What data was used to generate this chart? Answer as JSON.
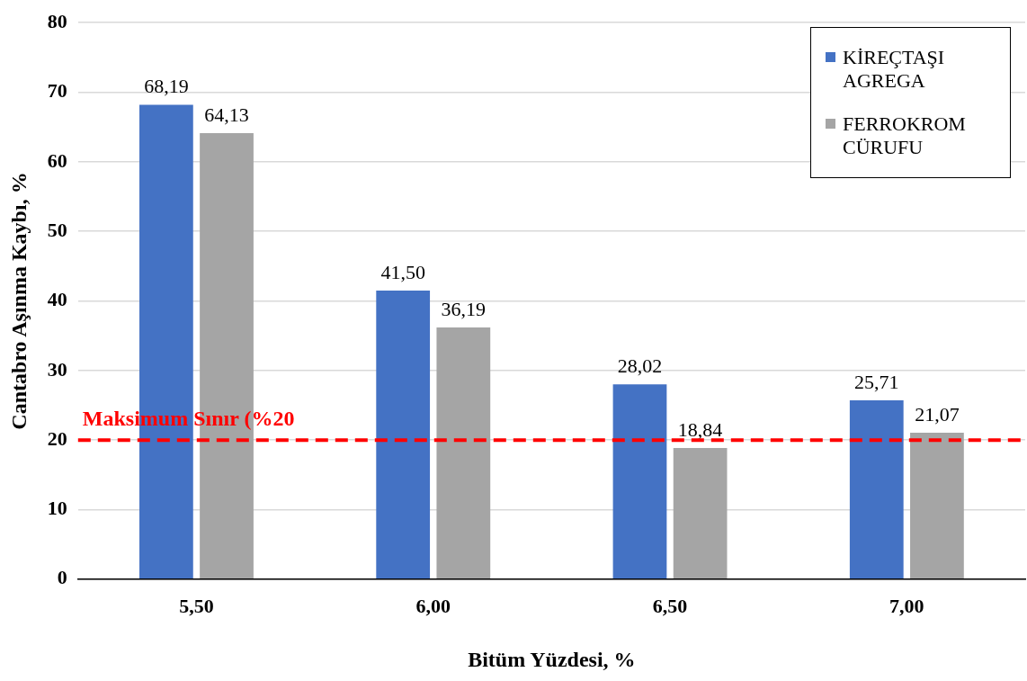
{
  "chart_data": {
    "type": "bar",
    "xlabel": "Bitüm Yüzdesi, %",
    "ylabel": "Cantabro Aşınma Kaybı, %",
    "categories": [
      "5,50",
      "6,00",
      "6,50",
      "7,00"
    ],
    "series": [
      {
        "name": "KİREÇTAŞI AGREGA",
        "color": "#4472c4",
        "values": [
          68.19,
          41.5,
          28.02,
          25.71
        ],
        "value_labels": [
          "68,19",
          "41,50",
          "28,02",
          "25,71"
        ]
      },
      {
        "name": "FERROKROM CÜRUFU",
        "color": "#a5a5a5",
        "values": [
          64.13,
          36.19,
          18.84,
          21.07
        ],
        "value_labels": [
          "64,13",
          "36,19",
          "18,84",
          "21,07"
        ]
      }
    ],
    "ylim": [
      0,
      80
    ],
    "yticks": [
      0,
      10,
      20,
      30,
      40,
      50,
      60,
      70,
      80
    ],
    "grid": "y",
    "legend": "top right",
    "ref_lines": [
      {
        "axis": "y",
        "value": 20,
        "label": "Maksimum Sınır (%20",
        "color": "#ff0000",
        "line_style": "dashed"
      }
    ]
  }
}
